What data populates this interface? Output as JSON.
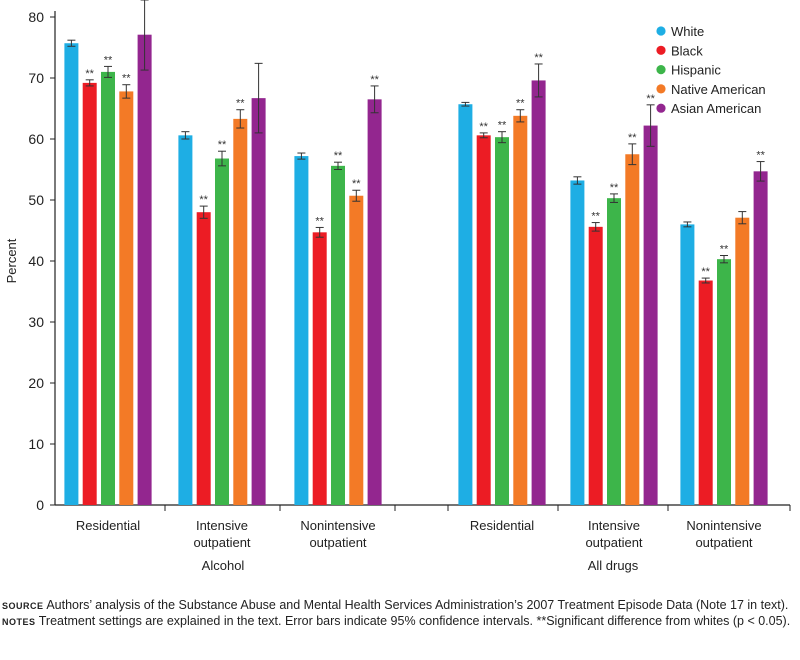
{
  "chart_data": {
    "type": "bar",
    "ylabel": "Percent",
    "ylim": [
      0,
      80
    ],
    "yticks": [
      0,
      10,
      20,
      30,
      40,
      50,
      60,
      70,
      80
    ],
    "groups": [
      {
        "label": "Alcohol",
        "categories": [
          "Residential",
          "Intensive outpatient",
          "Nonintensive outpatient"
        ]
      },
      {
        "label": "All drugs",
        "categories": [
          "Residential",
          "Intensive outpatient",
          "Nonintensive outpatient"
        ]
      }
    ],
    "series": [
      {
        "name": "White",
        "color": "#1eaee4",
        "values": [
          75.7,
          60.6,
          57.2,
          65.7,
          53.2,
          46.0
        ],
        "err": [
          0.5,
          0.6,
          0.5,
          0.3,
          0.6,
          0.4
        ],
        "sig": [
          false,
          false,
          false,
          false,
          false,
          false
        ]
      },
      {
        "name": "Black",
        "color": "#ec1c24",
        "values": [
          69.2,
          48.0,
          44.7,
          60.6,
          45.6,
          36.8
        ],
        "err": [
          0.5,
          1.0,
          0.8,
          0.4,
          0.7,
          0.4
        ],
        "sig": [
          true,
          true,
          true,
          true,
          true,
          true
        ]
      },
      {
        "name": "Hispanic",
        "color": "#3db54a",
        "values": [
          71.0,
          56.8,
          55.6,
          60.3,
          50.3,
          40.3
        ],
        "err": [
          0.9,
          1.2,
          0.6,
          0.9,
          0.7,
          0.6
        ],
        "sig": [
          true,
          true,
          true,
          true,
          true,
          true
        ]
      },
      {
        "name": "Native American",
        "color": "#f37a26",
        "values": [
          67.8,
          63.3,
          50.7,
          63.8,
          57.5,
          47.1
        ],
        "err": [
          1.1,
          1.5,
          0.9,
          1.0,
          1.7,
          1.0
        ],
        "sig": [
          true,
          true,
          true,
          true,
          true,
          false
        ]
      },
      {
        "name": "Asian American",
        "color": "#93268f",
        "values": [
          77.1,
          66.7,
          66.5,
          69.6,
          62.2,
          54.7
        ],
        "err": [
          5.8,
          5.7,
          2.2,
          2.7,
          3.4,
          1.6
        ],
        "sig": [
          true,
          false,
          true,
          true,
          true,
          true
        ]
      }
    ],
    "sig_marker": "**",
    "legend_position": "top-right"
  },
  "footnote": {
    "source_label": "Source",
    "source_text": "Authors’ analysis of the Substance Abuse and Mental Health Services Administration’s 2007 Treatment Episode Data (Note 17 in text).",
    "notes_label": "Notes",
    "notes_text": "Treatment settings are explained in the text. Error bars indicate 95% confidence intervals. **Significant difference from whites (p < 0.05)."
  }
}
